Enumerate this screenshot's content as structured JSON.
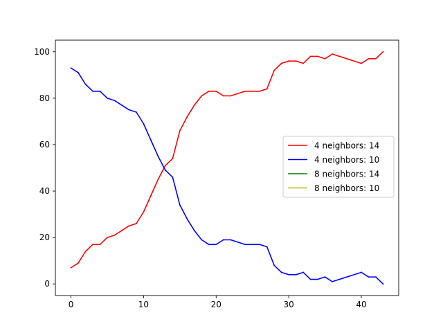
{
  "chart_data": {
    "type": "line",
    "xlim": [
      -2.15,
      45.15
    ],
    "ylim": [
      -5,
      105
    ],
    "xticks": [
      0,
      10,
      20,
      30,
      40
    ],
    "yticks": [
      0,
      20,
      40,
      60,
      80,
      100
    ],
    "grid": false,
    "legend_position": "center-right",
    "series": [
      {
        "name": "4 neighbors: 14",
        "color": "#ff0000",
        "x": [
          0,
          1,
          2,
          3,
          4,
          5,
          6,
          7,
          8,
          9,
          10,
          11,
          12,
          13,
          14,
          15,
          16,
          17,
          18,
          19,
          20,
          21,
          22,
          23,
          24,
          25,
          26,
          27,
          28,
          29,
          30,
          31,
          32,
          33,
          34,
          35,
          36,
          40,
          41,
          42,
          43
        ],
        "values": [
          7,
          9,
          14,
          17,
          17,
          20,
          21,
          23,
          25,
          26,
          31,
          38,
          45,
          51,
          54,
          66,
          72,
          77,
          81,
          83,
          83,
          81,
          81,
          82,
          83,
          83,
          83,
          84,
          92,
          95,
          96,
          96,
          95,
          98,
          98,
          97,
          99,
          95,
          97,
          97,
          100
        ]
      },
      {
        "name": "4 neighbors: 10",
        "color": "#0000ff",
        "x": [
          0,
          1,
          2,
          3,
          4,
          5,
          6,
          7,
          8,
          9,
          10,
          11,
          12,
          13,
          14,
          15,
          16,
          17,
          18,
          19,
          20,
          21,
          22,
          23,
          24,
          25,
          26,
          27,
          28,
          29,
          30,
          31,
          32,
          33,
          34,
          35,
          36,
          40,
          41,
          42,
          43
        ],
        "values": [
          93,
          91,
          86,
          83,
          83,
          80,
          79,
          77,
          75,
          74,
          69,
          62,
          55,
          49,
          46,
          34,
          28,
          23,
          19,
          17,
          17,
          19,
          19,
          18,
          17,
          17,
          17,
          16,
          8,
          5,
          4,
          4,
          5,
          2,
          2,
          3,
          1,
          5,
          3,
          3,
          0
        ]
      },
      {
        "name": "8 neighbors: 14",
        "color": "#008000",
        "x": [],
        "values": []
      },
      {
        "name": "8 neighbors: 10",
        "color": "#bfbf00",
        "x": [],
        "values": []
      }
    ]
  }
}
